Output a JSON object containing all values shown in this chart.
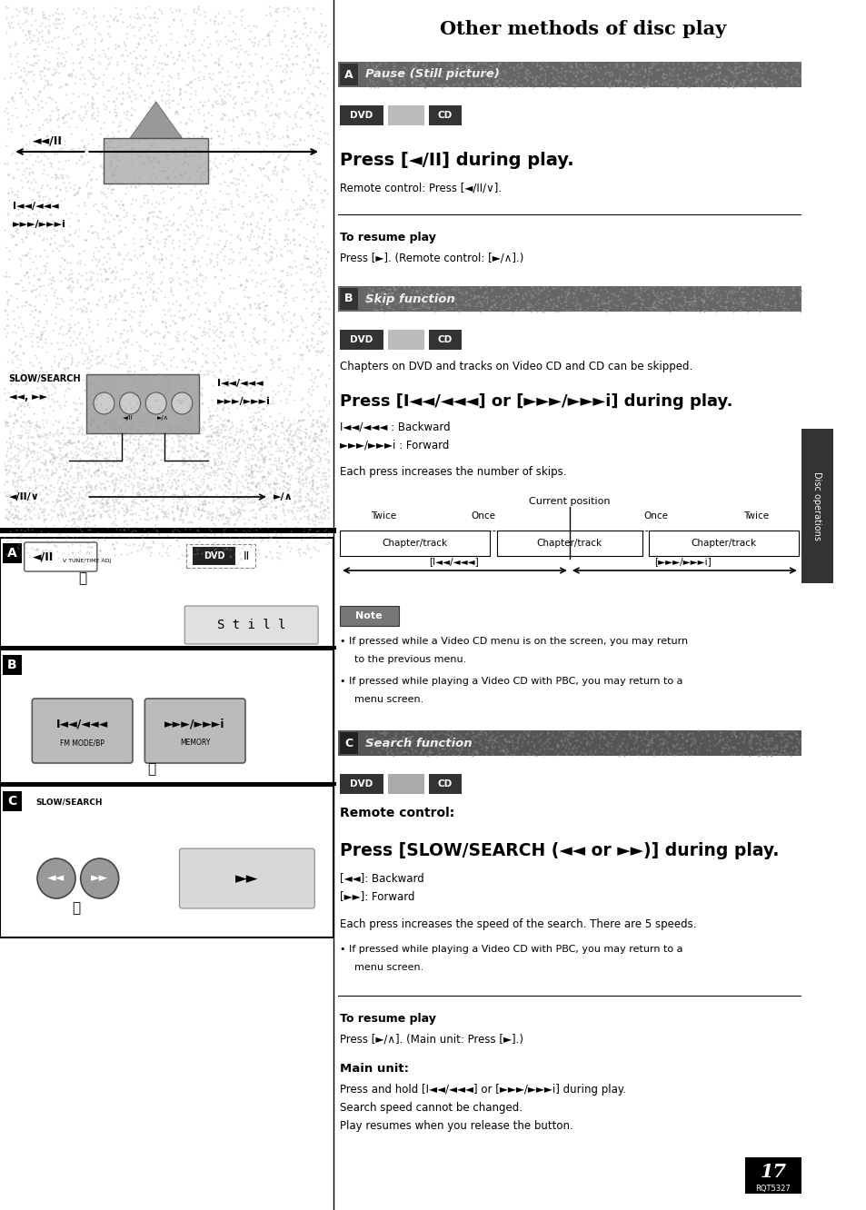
{
  "title": "Other methods of disc play",
  "page_bg_left": "#c8c8c8",
  "page_bg_right": "#ffffff",
  "section_headers": [
    "A   Pause (Still picture)",
    "B   Skip function",
    "C   Search function"
  ],
  "header_bg": "#666666",
  "dvd_label": "DVD",
  "cd_label": "CD",
  "press_pause_bold": "Press [◄/II] during play.",
  "remote_pause_small": "Remote control: Press [◄/II/∨].",
  "to_resume_a_bold": "To resume play",
  "resume_a": "Press [►]. (Remote control: [►/∧].)",
  "chapters_text": "Chapters on DVD and tracks on Video CD and CD can be skipped.",
  "press_skip_bold": "Press [I◄◄/◄◄◄] or [►►►/►►►i] during play.",
  "backward_skip": "I◄◄/◄◄◄ : Backward",
  "forward_skip": "►►►/►►►i : Forward",
  "each_press_skip": "Each press increases the number of skips.",
  "current_position": "Current position",
  "twice": "Twice",
  "once": "Once",
  "chapter_track": "Chapter/track",
  "backward_bracket": "[◄◄/◄◄◄]",
  "forward_bracket": "[►►►/►►►i]",
  "note_label": "Note",
  "note1": "• If pressed while a Video CD menu is on the screen, you may return",
  "note1b": "  to the previous menu.",
  "note2": "• If pressed while playing a Video CD with PBC, you may return to a",
  "note2b": "  menu screen.",
  "remote_control_bold": "Remote control:",
  "press_slow_bold": "Press [SLOW/SEARCH (◄◄ or ►►)] during play.",
  "backward_search": "[◄◄]: Backward",
  "forward_search": "[►►]: Forward",
  "each_press_search": "Each press increases the speed of the search. There are 5 speeds.",
  "note3": "• If pressed while playing a Video CD with PBC, you may return to a",
  "note3b": "  menu screen.",
  "to_resume_c_bold": "To resume play",
  "resume_c": "Press [►/∧]. (Main unit: Press [►].)",
  "main_unit_bold": "Main unit:",
  "main_unit1": "Press and hold [I◄◄/◄◄◄] or [►►►/►►►i] during play.",
  "main_unit2": "Search speed cannot be changed.",
  "main_unit3": "Play resumes when you release the button.",
  "page_num": "17",
  "page_code": "RQT5327",
  "disc_ops": "Disc operations",
  "slow_search_label": "SLOW/SEARCH",
  "slow_search_arrows": "◄◄, ►►",
  "pause_arrow": "◄II",
  "skip_back": "I◄◄/◄◄◄",
  "skip_fwd": "►►►/►►►i",
  "pause_resume": "◄/II/∨",
  "play_resume": "►/∧"
}
